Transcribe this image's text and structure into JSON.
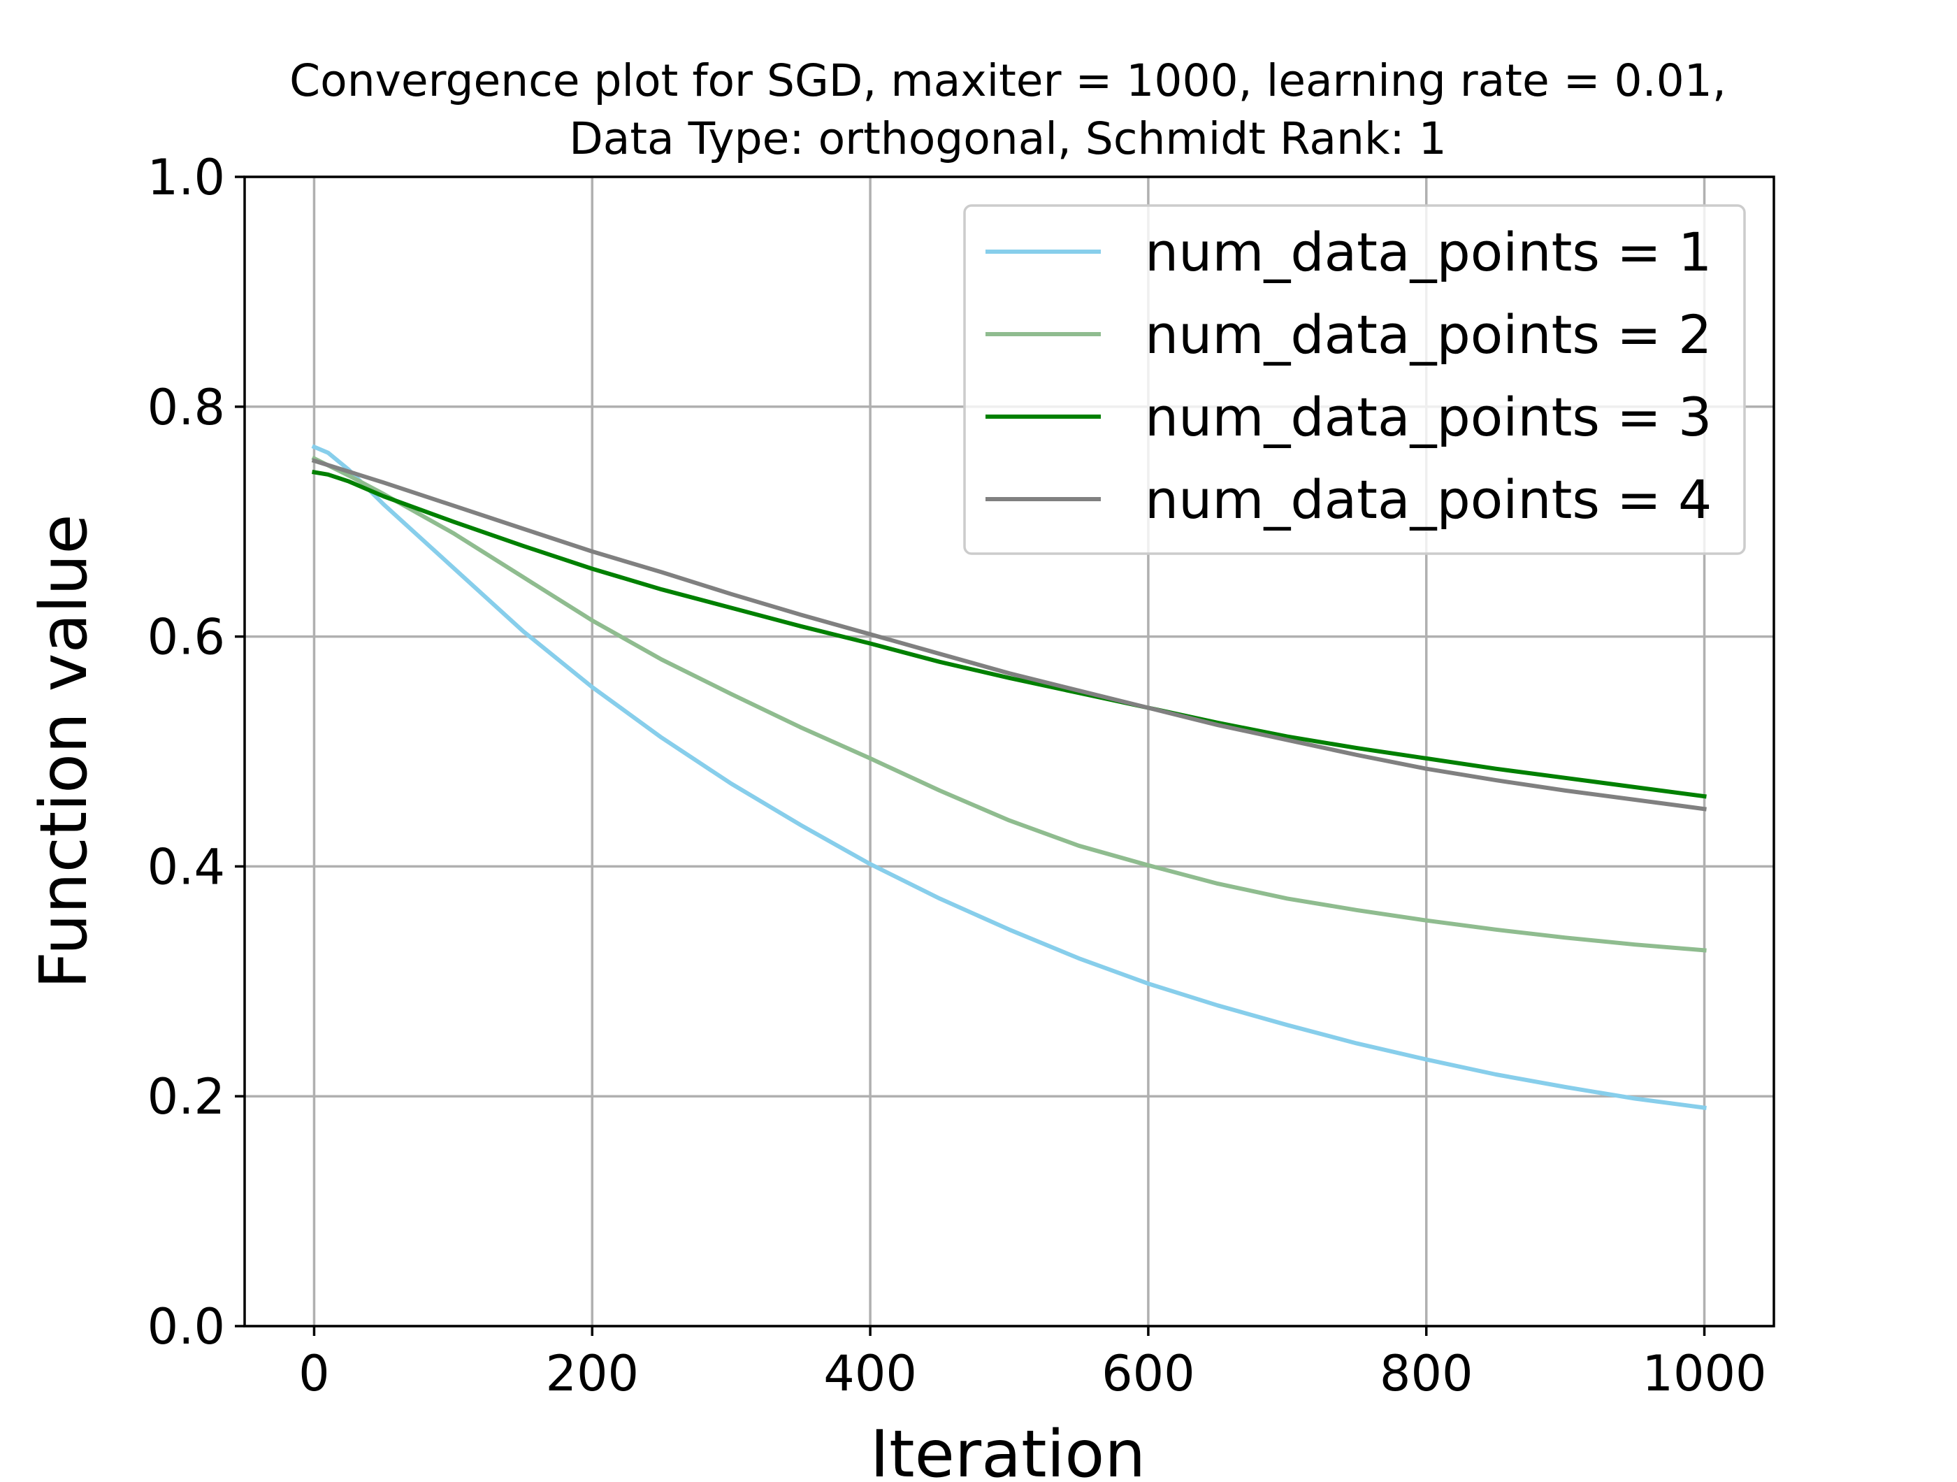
{
  "chart_data": {
    "type": "line",
    "title_lines": [
      "Convergence plot for SGD, maxiter = 1000, learning rate = 0.01,",
      "Data Type: orthogonal, Schmidt Rank: 1"
    ],
    "xlabel": "Iteration",
    "ylabel": "Function value",
    "xlim": [
      -50,
      1050
    ],
    "ylim": [
      0.0,
      1.0
    ],
    "xticks": [
      0,
      200,
      400,
      600,
      800,
      1000
    ],
    "xtick_labels": [
      "0",
      "200",
      "400",
      "600",
      "800",
      "1000"
    ],
    "yticks": [
      0.0,
      0.2,
      0.4,
      0.6,
      0.8,
      1.0
    ],
    "ytick_labels": [
      "0.0",
      "0.2",
      "0.4",
      "0.6",
      "0.8",
      "1.0"
    ],
    "grid": true,
    "legend_position": "upper right",
    "series": [
      {
        "name": "num_data_points = 1",
        "color": "#87ceeb",
        "x": [
          0,
          10,
          25,
          50,
          100,
          150,
          200,
          250,
          300,
          350,
          400,
          450,
          500,
          550,
          600,
          650,
          700,
          750,
          800,
          850,
          900,
          950,
          1000
        ],
        "y": [
          0.765,
          0.76,
          0.745,
          0.715,
          0.66,
          0.605,
          0.556,
          0.512,
          0.472,
          0.436,
          0.402,
          0.372,
          0.345,
          0.32,
          0.298,
          0.279,
          0.262,
          0.246,
          0.232,
          0.219,
          0.208,
          0.198,
          0.19
        ]
      },
      {
        "name": "num_data_points = 2",
        "color": "#8fbc8f",
        "x": [
          0,
          25,
          50,
          100,
          150,
          200,
          250,
          300,
          350,
          400,
          450,
          500,
          550,
          600,
          650,
          700,
          750,
          800,
          850,
          900,
          950,
          1000
        ],
        "y": [
          0.755,
          0.74,
          0.724,
          0.69,
          0.652,
          0.614,
          0.58,
          0.55,
          0.521,
          0.494,
          0.466,
          0.44,
          0.418,
          0.401,
          0.385,
          0.372,
          0.362,
          0.353,
          0.345,
          0.338,
          0.332,
          0.327
        ]
      },
      {
        "name": "num_data_points = 3",
        "color": "#008000",
        "x": [
          0,
          10,
          25,
          50,
          100,
          150,
          200,
          250,
          300,
          350,
          400,
          450,
          500,
          550,
          600,
          650,
          700,
          750,
          800,
          850,
          900,
          950,
          1000
        ],
        "y": [
          0.743,
          0.741,
          0.735,
          0.722,
          0.7,
          0.679,
          0.659,
          0.641,
          0.625,
          0.609,
          0.594,
          0.578,
          0.564,
          0.551,
          0.538,
          0.525,
          0.513,
          0.503,
          0.494,
          0.485,
          0.477,
          0.469,
          0.461
        ]
      },
      {
        "name": "num_data_points = 4",
        "color": "#808080",
        "x": [
          0,
          50,
          100,
          150,
          200,
          250,
          300,
          350,
          400,
          450,
          500,
          550,
          600,
          650,
          700,
          750,
          800,
          850,
          900,
          950,
          1000
        ],
        "y": [
          0.753,
          0.734,
          0.714,
          0.694,
          0.674,
          0.656,
          0.637,
          0.619,
          0.602,
          0.585,
          0.568,
          0.553,
          0.538,
          0.523,
          0.51,
          0.497,
          0.485,
          0.475,
          0.466,
          0.458,
          0.45
        ]
      }
    ]
  }
}
